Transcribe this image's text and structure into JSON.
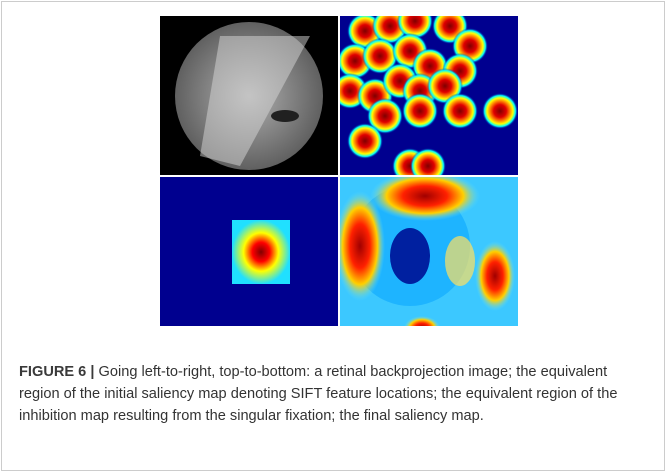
{
  "figure": {
    "label": "FIGURE 6 |",
    "caption": "Going left-to-right, top-to-bottom: a retinal backprojection image; the equivalent region of the initial saliency map denoting SIFT feature locations; the equivalent region of the inhibition map resulting from the singular fixation; the final saliency map."
  }
}
